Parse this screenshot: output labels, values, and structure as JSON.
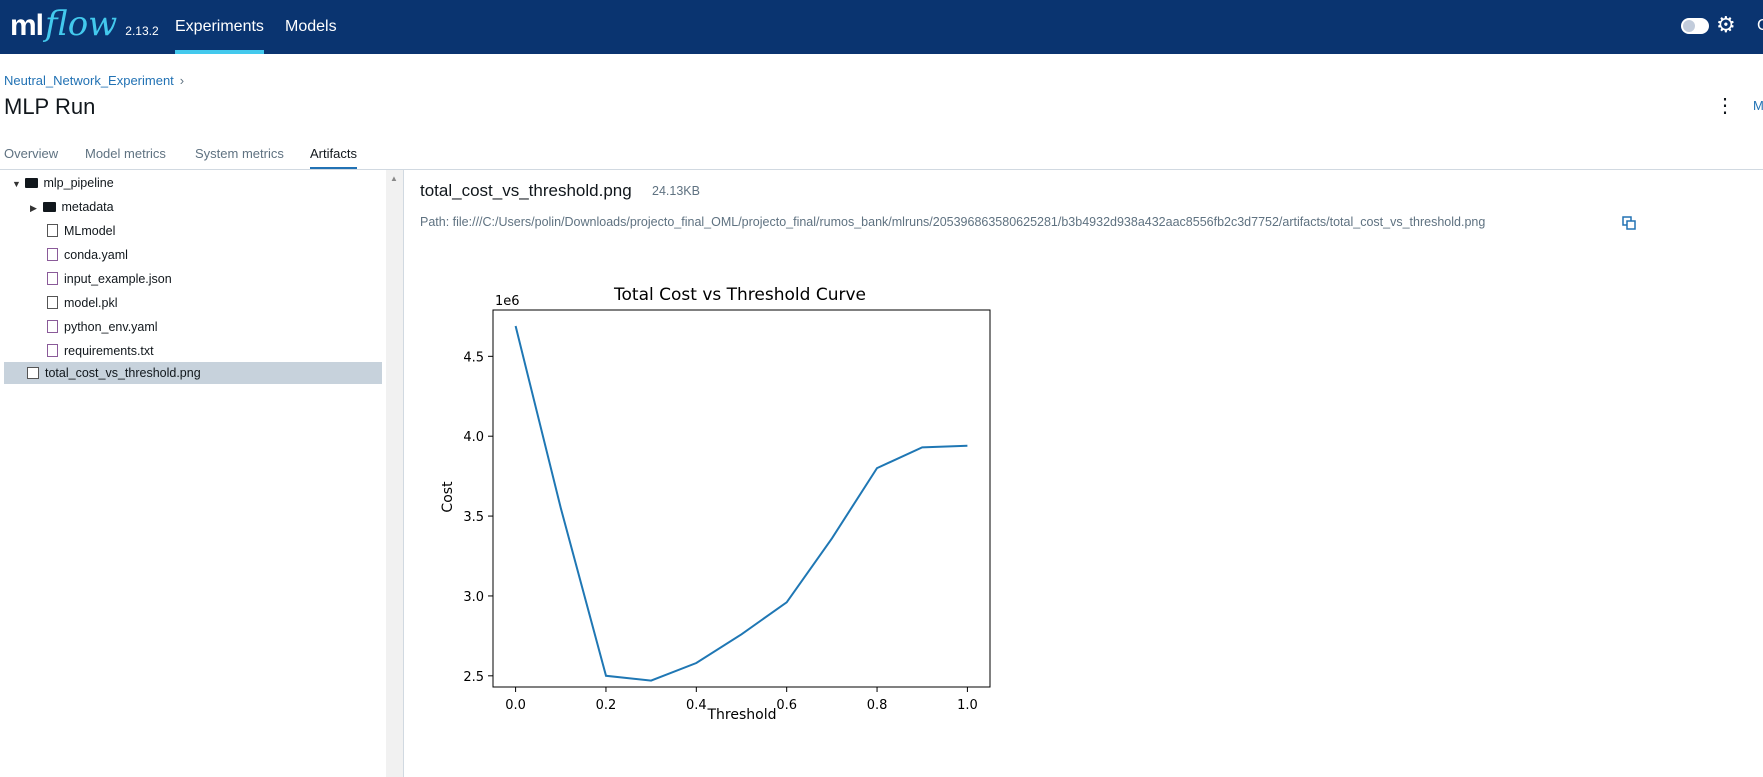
{
  "app": {
    "logo_ml": "ml",
    "logo_flow": "flow",
    "version": "2.13.2"
  },
  "nav": {
    "experiments": "Experiments",
    "models": "Models",
    "edge_text": "C"
  },
  "breadcrumb": {
    "experiment": "Neutral_Network_Experiment",
    "separator": "›"
  },
  "page": {
    "title": "MLP Run",
    "edge_text": "M"
  },
  "tabs": [
    "Overview",
    "Model metrics",
    "System metrics",
    "Artifacts"
  ],
  "tree": {
    "root": "mlp_pipeline",
    "items": [
      "metadata",
      "MLmodel",
      "conda.yaml",
      "input_example.json",
      "model.pkl",
      "python_env.yaml",
      "requirements.txt"
    ],
    "selected": "total_cost_vs_threshold.png"
  },
  "artifact": {
    "name": "total_cost_vs_threshold.png",
    "size": "24.13KB",
    "path": "Path: file:///C:/Users/polin/Downloads/projecto_final_OML/projecto_final/rumos_bank/mlruns/205396863580625281/b3b4932d938a432aac8556fb2c3d7752/artifacts/total_cost_vs_threshold.png"
  },
  "colors": {
    "nav_bg": "#0a3470",
    "accent": "#43c9ed",
    "link": "#2272b4",
    "series": "#1f77b4"
  },
  "chart_data": {
    "type": "line",
    "title": "Total Cost vs Threshold Curve",
    "xlabel": "Threshold",
    "ylabel": "Cost",
    "y_offset_label": "1e6",
    "x": [
      0.0,
      0.1,
      0.2,
      0.3,
      0.4,
      0.5,
      0.6,
      0.7,
      0.8,
      0.9,
      1.0
    ],
    "series": [
      {
        "values": [
          4.69,
          3.55,
          2.5,
          2.47,
          2.58,
          2.76,
          2.96,
          3.36,
          3.8,
          3.93,
          3.94
        ]
      }
    ],
    "xlim": [
      -0.05,
      1.05
    ],
    "ylim": [
      2.43,
      4.79
    ],
    "xticks": [
      "0.0",
      "0.2",
      "0.4",
      "0.6",
      "0.8",
      "1.0"
    ],
    "yticks": [
      "2.5",
      "3.0",
      "3.5",
      "4.0",
      "4.5"
    ],
    "grid": false
  }
}
